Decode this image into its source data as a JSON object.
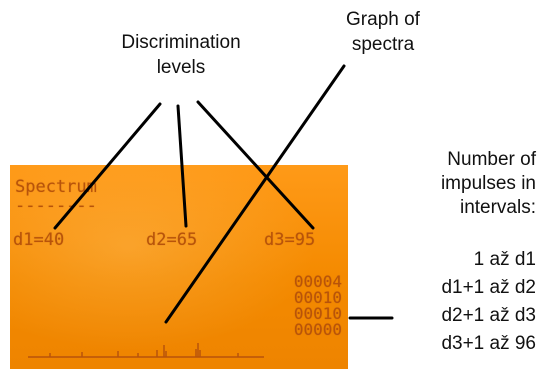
{
  "callouts": {
    "discrimination_line1": "Discrimination",
    "discrimination_line2": "levels",
    "graph_line1": "Graph of",
    "graph_line2": "spectra"
  },
  "display": {
    "title": "Spectrum",
    "underline": "--------",
    "d1": "d1=40",
    "d2": "d2=65",
    "d3": "d3=95",
    "counts": [
      "00004",
      "00010",
      "00010",
      "00000"
    ],
    "background_color": "#f48a00",
    "text_color": "#b8530a"
  },
  "legend": {
    "title_line1": "Number of",
    "title_line2": "impulses in",
    "title_line3": "intervals:",
    "intervals": [
      "1 až d1",
      "d1+1 až d2",
      "d2+1 až d3",
      "d3+1 až 96"
    ]
  }
}
